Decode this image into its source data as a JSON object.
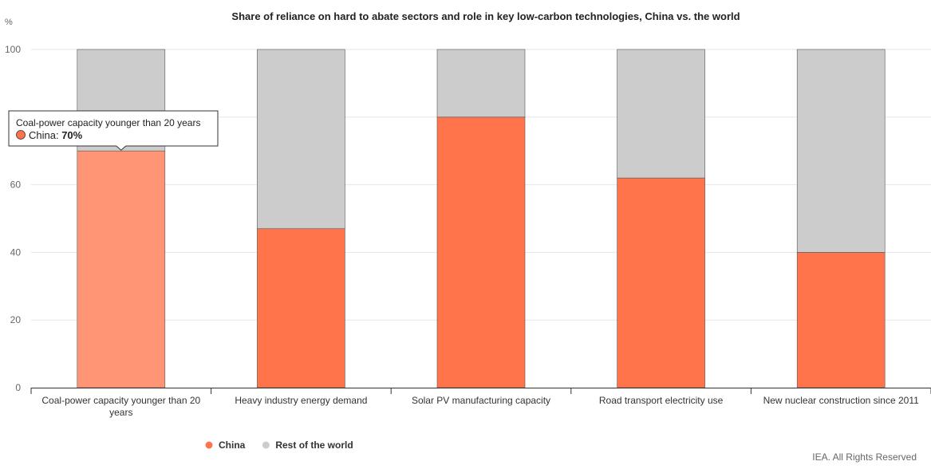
{
  "chart_data": {
    "type": "bar",
    "stacked": true,
    "title": "Share of reliance on hard to abate sectors and role in key low-carbon technologies, China vs. the world",
    "unit_label": "%",
    "ylim": [
      0,
      100
    ],
    "yticks": [
      0,
      20,
      40,
      60,
      80,
      100
    ],
    "grid": true,
    "categories": [
      "Coal-power capacity younger than 20 years",
      "Heavy industry energy demand",
      "Solar PV manufacturing capacity",
      "Road transport electricity use",
      "New nuclear construction since 2011"
    ],
    "series": [
      {
        "name": "China",
        "color": "#ff744a",
        "values": [
          70,
          47,
          80,
          62,
          40
        ]
      },
      {
        "name": "Rest of the world",
        "color": "#cccccc",
        "values": [
          30,
          53,
          20,
          38,
          60
        ]
      }
    ],
    "legend_position": "bottom-left",
    "tooltip": {
      "category": "Coal-power capacity younger than 20 years",
      "series_name": "China",
      "value_text": "70%",
      "separator": ": "
    },
    "credit": "IEA. All Rights Reserved"
  }
}
